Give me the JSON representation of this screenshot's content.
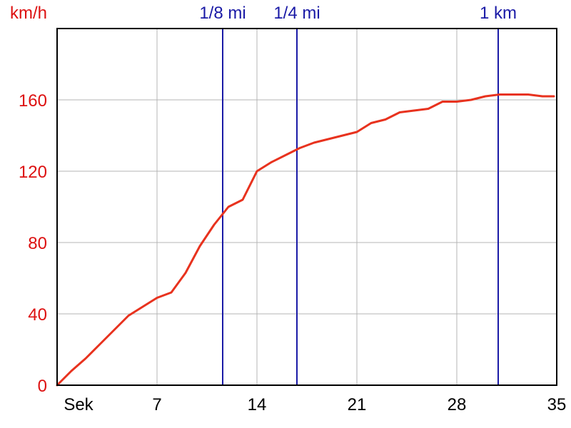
{
  "chart_data": {
    "type": "line",
    "ylabel": "km/h",
    "xlabel": "Sek",
    "xlim": [
      0,
      35
    ],
    "ylim": [
      0,
      200
    ],
    "x_ticks": [
      7,
      14,
      21,
      28,
      35
    ],
    "y_ticks": [
      0,
      40,
      80,
      120,
      160
    ],
    "grid": true,
    "colors": {
      "series": "#e8321e",
      "markers": "#1a1aa6",
      "y_ticks": "#dd1111",
      "x_ticks": "#000000",
      "grid": "#b4b4b4"
    },
    "series": [
      {
        "x": [
          0,
          1,
          2,
          3,
          4,
          5,
          6,
          7,
          8,
          9,
          10,
          11,
          12,
          13,
          14,
          15,
          16,
          17,
          18,
          19,
          20,
          21,
          22,
          23,
          24,
          25,
          26,
          27,
          28,
          29,
          30,
          31,
          32,
          33,
          34,
          34.8
        ],
        "y": [
          0,
          8,
          15,
          23,
          31,
          39,
          44,
          49,
          52,
          63,
          78,
          90,
          100,
          104,
          120,
          125,
          129,
          133,
          136,
          138,
          140,
          142,
          147,
          149,
          153,
          154,
          155,
          159,
          159,
          160,
          162,
          163,
          163,
          163,
          162,
          162
        ]
      }
    ],
    "markers": [
      {
        "label": "1/8 mi",
        "x": 11.6
      },
      {
        "label": "1/4 mi",
        "x": 16.8
      },
      {
        "label": "1 km",
        "x": 30.9
      }
    ]
  }
}
